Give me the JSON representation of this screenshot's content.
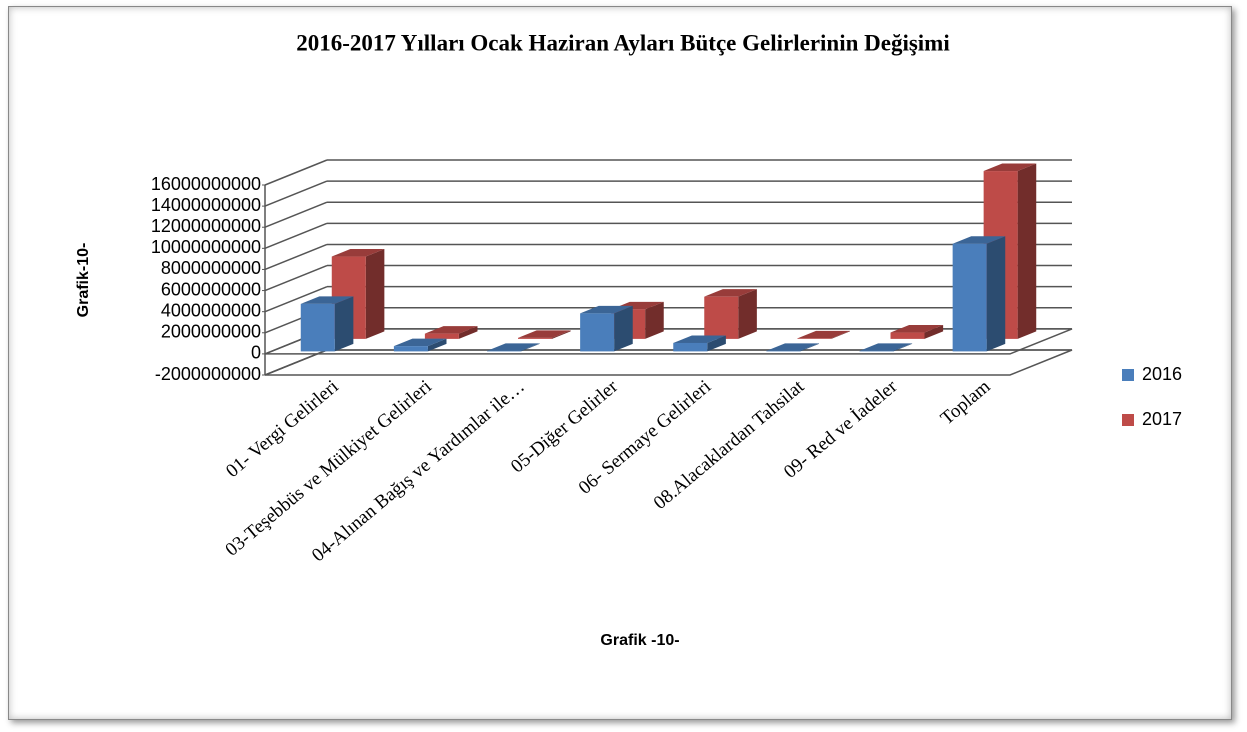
{
  "chart_data": {
    "type": "bar3d",
    "title": "2016-2017 Yılları Ocak Haziran Ayları Bütçe Gelirlerinin Değişimi",
    "y_label": "Grafik-10-",
    "x_label": "Grafik -10-",
    "categories": [
      "01- Vergi Gelirleri",
      "03-Teşebbüs ve Mülkiyet Gelirleri",
      "04-Alınan Bağış ve Yardımlar ile…",
      "05-Diğer Gelirler",
      "06- Sermaye Gelirleri",
      "08.Alacaklardan Tahsilat",
      "09- Red ve İadeler",
      "Toplam"
    ],
    "series": [
      {
        "name": "2016",
        "color": "#4a7ebb",
        "values": [
          4500000000,
          500000000,
          50000000,
          3600000000,
          800000000,
          50000000,
          50000000,
          10200000000
        ]
      },
      {
        "name": "2017",
        "color": "#be4b48",
        "values": [
          7800000000,
          500000000,
          100000000,
          2800000000,
          4000000000,
          50000000,
          600000000,
          15900000000
        ]
      }
    ],
    "ylim": [
      -2000000000,
      16000000000
    ],
    "yticks": [
      -2000000000,
      0,
      2000000000,
      4000000000,
      6000000000,
      8000000000,
      10000000000,
      12000000000,
      14000000000,
      16000000000
    ],
    "grid": true,
    "legend": "right"
  }
}
